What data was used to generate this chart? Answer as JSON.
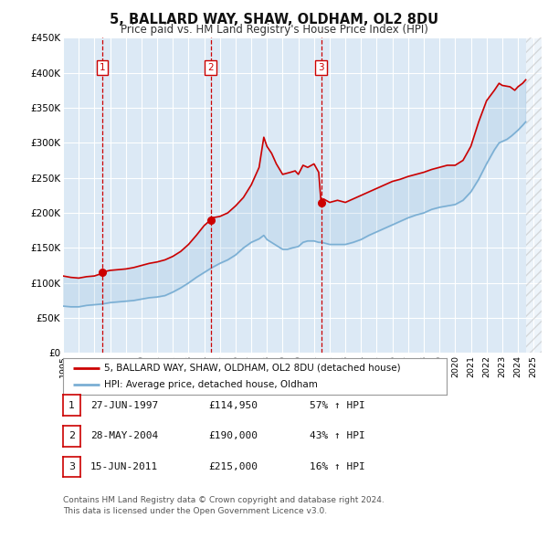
{
  "title": "5, BALLARD WAY, SHAW, OLDHAM, OL2 8DU",
  "subtitle": "Price paid vs. HM Land Registry's House Price Index (HPI)",
  "bg_color": "#dce9f5",
  "plot_bg_color": "#dce9f5",
  "grid_color": "#ffffff",
  "red_line_color": "#cc0000",
  "blue_line_color": "#7bafd4",
  "xlim_start": 1995.0,
  "xlim_end": 2025.5,
  "ylim_min": 0,
  "ylim_max": 450000,
  "yticks": [
    0,
    50000,
    100000,
    150000,
    200000,
    250000,
    300000,
    350000,
    400000,
    450000
  ],
  "ytick_labels": [
    "£0",
    "£50K",
    "£100K",
    "£150K",
    "£200K",
    "£250K",
    "£300K",
    "£350K",
    "£400K",
    "£450K"
  ],
  "xticks": [
    1995,
    1996,
    1997,
    1998,
    1999,
    2000,
    2001,
    2002,
    2003,
    2004,
    2005,
    2006,
    2007,
    2008,
    2009,
    2010,
    2011,
    2012,
    2013,
    2014,
    2015,
    2016,
    2017,
    2018,
    2019,
    2020,
    2021,
    2022,
    2023,
    2024,
    2025
  ],
  "sale_dates": [
    1997.49,
    2004.41,
    2011.45
  ],
  "sale_prices": [
    114950,
    190000,
    215000
  ],
  "sale_labels": [
    "1",
    "2",
    "3"
  ],
  "vline_color": "#cc0000",
  "marker_color": "#cc0000",
  "legend_items": [
    "5, BALLARD WAY, SHAW, OLDHAM, OL2 8DU (detached house)",
    "HPI: Average price, detached house, Oldham"
  ],
  "table_rows": [
    [
      "1",
      "27-JUN-1997",
      "£114,950",
      "57% ↑ HPI"
    ],
    [
      "2",
      "28-MAY-2004",
      "£190,000",
      "43% ↑ HPI"
    ],
    [
      "3",
      "15-JUN-2011",
      "£215,000",
      "16% ↑ HPI"
    ]
  ],
  "footer_line1": "Contains HM Land Registry data © Crown copyright and database right 2024.",
  "footer_line2": "This data is licensed under the Open Government Licence v3.0.",
  "hpi_red_data": [
    [
      1995.0,
      110000
    ],
    [
      1995.5,
      108000
    ],
    [
      1996.0,
      107000
    ],
    [
      1996.5,
      109000
    ],
    [
      1997.0,
      110000
    ],
    [
      1997.4,
      113000
    ],
    [
      1997.49,
      114950
    ],
    [
      1997.6,
      116000
    ],
    [
      1998.0,
      118000
    ],
    [
      1998.5,
      119000
    ],
    [
      1999.0,
      120000
    ],
    [
      1999.5,
      122000
    ],
    [
      2000.0,
      125000
    ],
    [
      2000.5,
      128000
    ],
    [
      2001.0,
      130000
    ],
    [
      2001.5,
      133000
    ],
    [
      2002.0,
      138000
    ],
    [
      2002.5,
      145000
    ],
    [
      2003.0,
      155000
    ],
    [
      2003.5,
      168000
    ],
    [
      2004.0,
      182000
    ],
    [
      2004.41,
      190000
    ],
    [
      2004.5,
      193000
    ],
    [
      2005.0,
      195000
    ],
    [
      2005.5,
      200000
    ],
    [
      2006.0,
      210000
    ],
    [
      2006.5,
      222000
    ],
    [
      2007.0,
      240000
    ],
    [
      2007.5,
      265000
    ],
    [
      2007.8,
      308000
    ],
    [
      2008.0,
      295000
    ],
    [
      2008.3,
      285000
    ],
    [
      2008.6,
      270000
    ],
    [
      2009.0,
      255000
    ],
    [
      2009.5,
      258000
    ],
    [
      2009.8,
      260000
    ],
    [
      2010.0,
      255000
    ],
    [
      2010.3,
      268000
    ],
    [
      2010.6,
      265000
    ],
    [
      2011.0,
      270000
    ],
    [
      2011.3,
      258000
    ],
    [
      2011.45,
      215000
    ],
    [
      2011.6,
      220000
    ],
    [
      2012.0,
      215000
    ],
    [
      2012.5,
      218000
    ],
    [
      2013.0,
      215000
    ],
    [
      2013.5,
      220000
    ],
    [
      2014.0,
      225000
    ],
    [
      2014.5,
      230000
    ],
    [
      2015.0,
      235000
    ],
    [
      2015.5,
      240000
    ],
    [
      2016.0,
      245000
    ],
    [
      2016.5,
      248000
    ],
    [
      2017.0,
      252000
    ],
    [
      2017.5,
      255000
    ],
    [
      2018.0,
      258000
    ],
    [
      2018.5,
      262000
    ],
    [
      2019.0,
      265000
    ],
    [
      2019.5,
      268000
    ],
    [
      2020.0,
      268000
    ],
    [
      2020.5,
      275000
    ],
    [
      2021.0,
      295000
    ],
    [
      2021.5,
      330000
    ],
    [
      2022.0,
      360000
    ],
    [
      2022.5,
      375000
    ],
    [
      2022.8,
      385000
    ],
    [
      2023.0,
      382000
    ],
    [
      2023.5,
      380000
    ],
    [
      2023.8,
      375000
    ],
    [
      2024.0,
      380000
    ],
    [
      2024.3,
      385000
    ],
    [
      2024.5,
      390000
    ]
  ],
  "hpi_blue_data": [
    [
      1995.0,
      67000
    ],
    [
      1995.5,
      66000
    ],
    [
      1996.0,
      66000
    ],
    [
      1996.5,
      68000
    ],
    [
      1997.0,
      69000
    ],
    [
      1997.5,
      70000
    ],
    [
      1998.0,
      72000
    ],
    [
      1998.5,
      73000
    ],
    [
      1999.0,
      74000
    ],
    [
      1999.5,
      75000
    ],
    [
      2000.0,
      77000
    ],
    [
      2000.5,
      79000
    ],
    [
      2001.0,
      80000
    ],
    [
      2001.5,
      82000
    ],
    [
      2002.0,
      87000
    ],
    [
      2002.5,
      93000
    ],
    [
      2003.0,
      100000
    ],
    [
      2003.5,
      108000
    ],
    [
      2004.0,
      115000
    ],
    [
      2004.5,
      122000
    ],
    [
      2005.0,
      128000
    ],
    [
      2005.5,
      133000
    ],
    [
      2006.0,
      140000
    ],
    [
      2006.5,
      150000
    ],
    [
      2007.0,
      158000
    ],
    [
      2007.5,
      163000
    ],
    [
      2007.8,
      168000
    ],
    [
      2008.0,
      162000
    ],
    [
      2008.5,
      155000
    ],
    [
      2009.0,
      148000
    ],
    [
      2009.3,
      148000
    ],
    [
      2009.6,
      150000
    ],
    [
      2010.0,
      152000
    ],
    [
      2010.3,
      158000
    ],
    [
      2010.6,
      160000
    ],
    [
      2011.0,
      160000
    ],
    [
      2011.3,
      158000
    ],
    [
      2011.5,
      158000
    ],
    [
      2012.0,
      155000
    ],
    [
      2012.5,
      155000
    ],
    [
      2013.0,
      155000
    ],
    [
      2013.5,
      158000
    ],
    [
      2014.0,
      162000
    ],
    [
      2014.5,
      168000
    ],
    [
      2015.0,
      173000
    ],
    [
      2015.5,
      178000
    ],
    [
      2016.0,
      183000
    ],
    [
      2016.5,
      188000
    ],
    [
      2017.0,
      193000
    ],
    [
      2017.5,
      197000
    ],
    [
      2018.0,
      200000
    ],
    [
      2018.5,
      205000
    ],
    [
      2019.0,
      208000
    ],
    [
      2019.5,
      210000
    ],
    [
      2020.0,
      212000
    ],
    [
      2020.5,
      218000
    ],
    [
      2021.0,
      230000
    ],
    [
      2021.5,
      248000
    ],
    [
      2022.0,
      270000
    ],
    [
      2022.5,
      290000
    ],
    [
      2022.8,
      300000
    ],
    [
      2023.0,
      302000
    ],
    [
      2023.3,
      305000
    ],
    [
      2023.6,
      310000
    ],
    [
      2024.0,
      318000
    ],
    [
      2024.3,
      325000
    ],
    [
      2024.5,
      330000
    ]
  ]
}
